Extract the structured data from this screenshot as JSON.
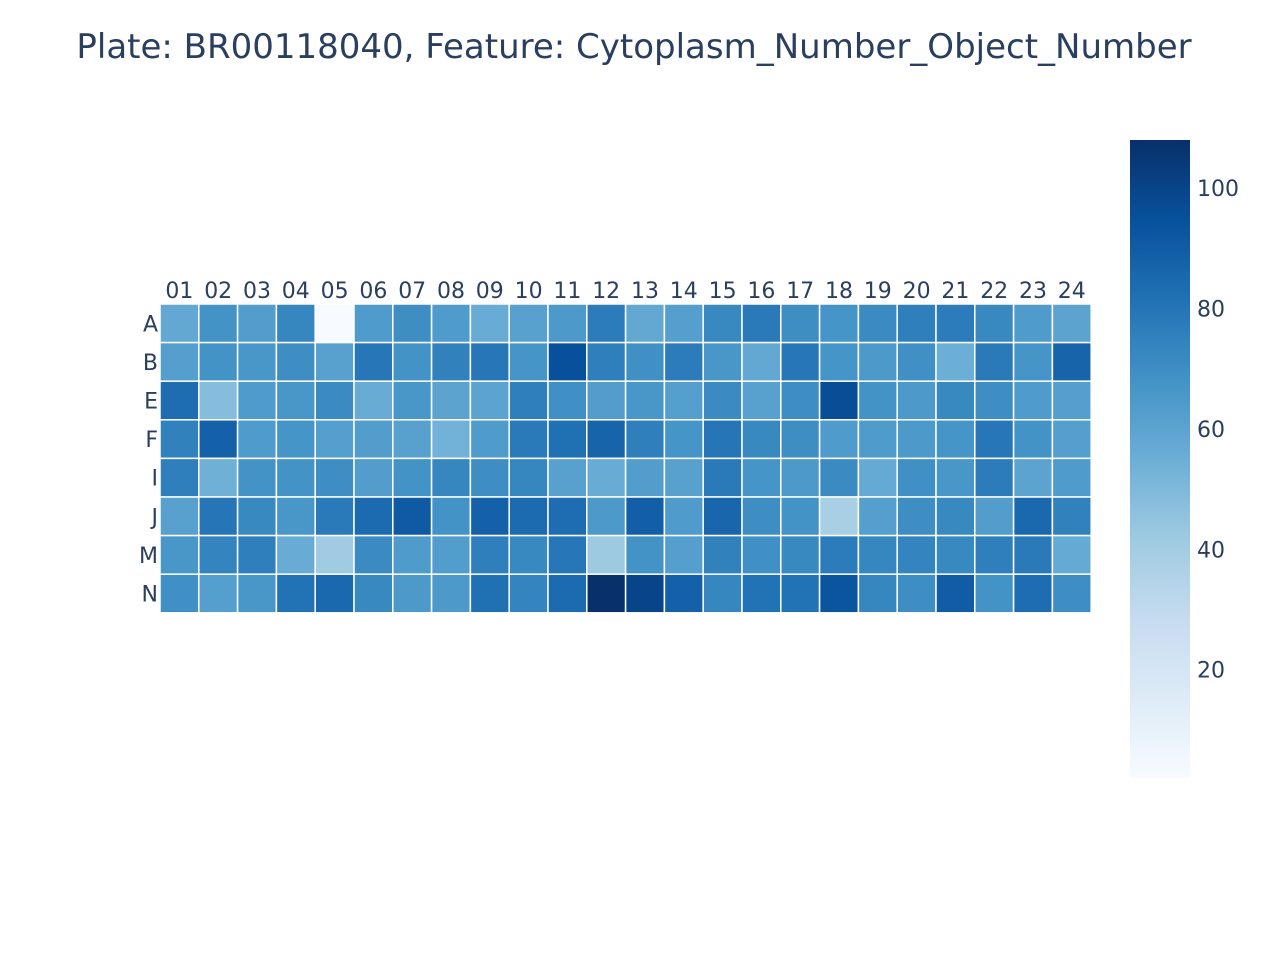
{
  "chart_data": {
    "type": "heatmap",
    "title": "Plate: BR00118040, Feature: Cytoplasm_Number_Object_Number",
    "x_categories": [
      "01",
      "02",
      "03",
      "04",
      "05",
      "06",
      "07",
      "08",
      "09",
      "10",
      "11",
      "12",
      "13",
      "14",
      "15",
      "16",
      "17",
      "18",
      "19",
      "20",
      "21",
      "22",
      "23",
      "24"
    ],
    "y_categories": [
      "A",
      "B",
      "E",
      "F",
      "I",
      "J",
      "M",
      "N"
    ],
    "values": [
      [
        58,
        68,
        63,
        73,
        2,
        64,
        70,
        64,
        56,
        61,
        65,
        77,
        58,
        62,
        72,
        78,
        70,
        67,
        71,
        76,
        77,
        72,
        64,
        60
      ],
      [
        62,
        68,
        66,
        70,
        61,
        79,
        68,
        75,
        79,
        67,
        95,
        76,
        69,
        77,
        66,
        58,
        79,
        67,
        65,
        69,
        55,
        78,
        67,
        87
      ],
      [
        83,
        48,
        64,
        66,
        71,
        56,
        66,
        60,
        60,
        76,
        69,
        63,
        66,
        62,
        71,
        61,
        70,
        96,
        68,
        65,
        72,
        70,
        64,
        62
      ],
      [
        75,
        88,
        64,
        67,
        62,
        63,
        61,
        53,
        64,
        78,
        82,
        87,
        76,
        67,
        80,
        72,
        70,
        64,
        64,
        65,
        67,
        79,
        68,
        62
      ],
      [
        76,
        54,
        68,
        68,
        70,
        63,
        68,
        73,
        70,
        73,
        61,
        56,
        63,
        61,
        78,
        67,
        65,
        71,
        57,
        69,
        66,
        77,
        60,
        64
      ],
      [
        61,
        80,
        72,
        66,
        78,
        84,
        91,
        68,
        88,
        84,
        83,
        65,
        89,
        64,
        86,
        70,
        68,
        38,
        62,
        70,
        72,
        63,
        85,
        75
      ],
      [
        66,
        74,
        76,
        56,
        41,
        71,
        64,
        63,
        76,
        72,
        79,
        42,
        68,
        62,
        75,
        69,
        72,
        77,
        73,
        74,
        72,
        76,
        78,
        57
      ],
      [
        69,
        62,
        66,
        81,
        85,
        72,
        65,
        65,
        82,
        74,
        84,
        108,
        100,
        88,
        73,
        81,
        81,
        93,
        73,
        70,
        90,
        68,
        83,
        70
      ]
    ],
    "zmin": 2,
    "zmax": 108,
    "colorscale": "Blues",
    "colorbar_ticks": [
      "20",
      "40",
      "60",
      "80",
      "100"
    ]
  }
}
